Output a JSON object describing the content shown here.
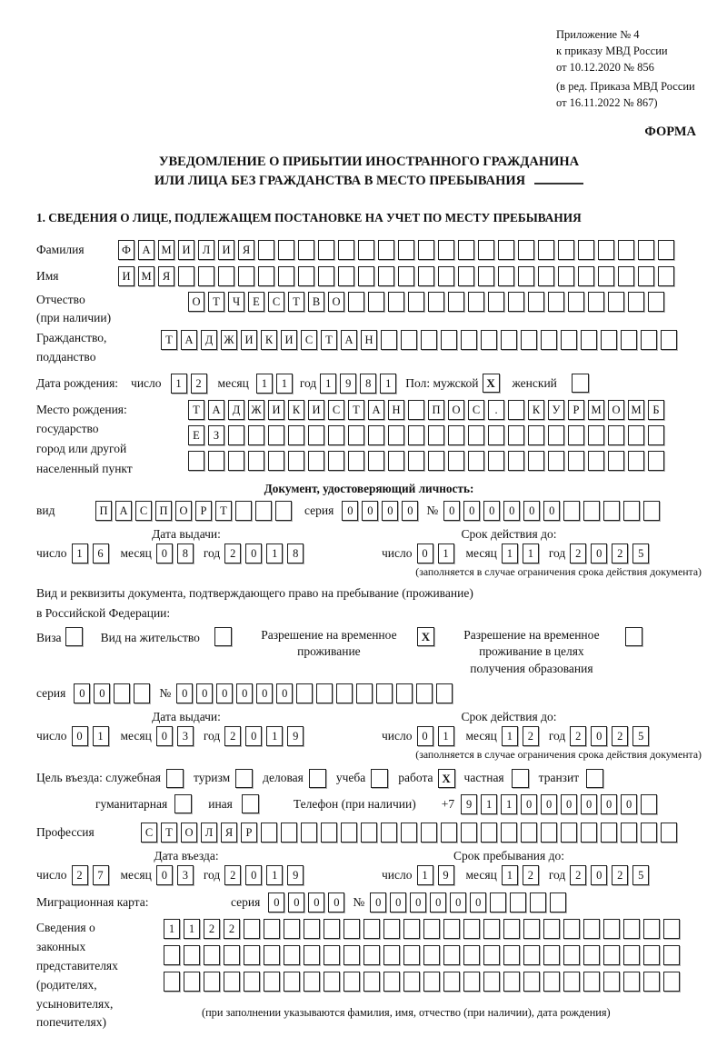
{
  "header": {
    "lines": [
      "Приложение № 4",
      "к приказу МВД России",
      "от 10.12.2020 № 856",
      "(в ред. Приказа МВД России",
      "от 16.11.2022 № 867)"
    ],
    "forma": "ФОРМА"
  },
  "title": {
    "line1": "УВЕДОМЛЕНИЕ О ПРИБЫТИИ ИНОСТРАННОГО ГРАЖДАНИНА",
    "line2": "ИЛИ ЛИЦА БЕЗ ГРАЖДАНСТВА В МЕСТО ПРЕБЫВАНИЯ"
  },
  "section1": {
    "heading": "1. СВЕДЕНИЯ О ЛИЦЕ, ПОДЛЕЖАЩЕМ ПОСТАНОВКЕ НА УЧЕТ ПО МЕСТУ ПРЕБЫВАНИЯ"
  },
  "labels": {
    "surname": "Фамилия",
    "name": "Имя",
    "patronymic": "Отчество",
    "patronymic_note": "(при наличии)",
    "citizenship1": "Гражданство,",
    "citizenship2": "подданство",
    "birthdate": "Дата рождения:",
    "day": "число",
    "month": "месяц",
    "year": "год",
    "sex_male": "Пол: мужской",
    "sex_female": "женский",
    "birthplace1": "Место рождения:",
    "birthplace2": "государство",
    "birthplace3": "город или другой",
    "birthplace4": "населенный пункт",
    "doc_heading": "Документ, удостоверяющий личность:",
    "vid": "вид",
    "seriya": "серия",
    "number_sign": "№",
    "issue_date": "Дата выдачи:",
    "valid_until": "Срок действия до:",
    "restriction_note": "(заполняется в случае ограничения срока действия документа)",
    "right_to_stay1": "Вид и реквизиты документа, подтверждающего право на пребывание (проживание)",
    "right_to_stay2": "в Российской Федерации:",
    "visa": "Виза",
    "residence_permit": "Вид на жительство",
    "temp_permit1": "Разрешение на временное",
    "temp_permit2": "проживание",
    "edu_permit1": "Разрешение на временное",
    "edu_permit2": "проживание в целях",
    "edu_permit3": "получения образования",
    "purpose": "Цель въезда: служебная",
    "tourism": "туризм",
    "business": "деловая",
    "study": "учеба",
    "work": "работа",
    "private": "частная",
    "transit": "транзит",
    "humanitarian": "гуманитарная",
    "other": "иная",
    "phone": "Телефон (при наличии)",
    "plus7": "+7",
    "profession": "Профессия",
    "entry_date": "Дата въезда:",
    "stay_until": "Срок пребывания до:",
    "migration_card": "Миграционная карта:",
    "reps1": "Сведения о",
    "reps2": "законных",
    "reps3": "представителях",
    "reps4": "(родителях,",
    "reps5": "усыновителях,",
    "reps6": "попечителях)",
    "rep_note": "(при заполнении указываются фамилия, имя, отчество (при наличии), дата рождения)"
  },
  "fields": {
    "surname": {
      "text": "ФАМИЛИЯ",
      "total": 28
    },
    "name": {
      "text": "ИМЯ",
      "total": 28
    },
    "patronymic": {
      "text": "ОТЧЕСТВО",
      "total": 24
    },
    "citizenship": {
      "text": "ТАДЖИКИСТАН",
      "total": 26
    },
    "birth_day": "12",
    "birth_month": "11",
    "birth_year": "1981",
    "birthplace_row1": {
      "text": "ТАДЖИКИСТАН ПОС. КУРМОМБ",
      "total": 24
    },
    "birthplace_row2": {
      "text": "ЕЗ",
      "total": 24
    },
    "birthplace_row3": {
      "text": "",
      "total": 24
    },
    "doc_type": {
      "text": "ПАСПОРТ",
      "total": 10
    },
    "doc_series": {
      "text": "0000",
      "total": 4
    },
    "doc_number": {
      "text": "000000",
      "total": 11
    },
    "doc_issue_day": "16",
    "doc_issue_month": "08",
    "doc_issue_year": "2018",
    "doc_valid_day": "01",
    "doc_valid_month": "11",
    "doc_valid_year": "2025",
    "permit_series": {
      "text": "00",
      "total": 4
    },
    "permit_number": {
      "text": "000000",
      "total": 14
    },
    "permit_issue_day": "01",
    "permit_issue_month": "03",
    "permit_issue_year": "2019",
    "permit_valid_day": "01",
    "permit_valid_month": "12",
    "permit_valid_year": "2025",
    "phone": {
      "text": "911000000",
      "total": 10
    },
    "profession": {
      "text": "СТОЛЯР",
      "total": 27
    },
    "entry_day": "27",
    "entry_month": "03",
    "entry_year": "2019",
    "stay_day": "19",
    "stay_month": "12",
    "stay_year": "2025",
    "mig_series": {
      "text": "0000",
      "total": 4
    },
    "mig_number": {
      "text": "000000",
      "total": 10
    },
    "reps_row1": {
      "text": "1122",
      "total": 26
    },
    "reps_row2": {
      "text": "",
      "total": 26
    },
    "reps_row3": {
      "text": "",
      "total": 26
    }
  },
  "checks": {
    "male": "X",
    "female": "",
    "visa": "",
    "residence_permit": "",
    "temp_permit": "X",
    "edu_permit": "",
    "official": "",
    "tourism": "",
    "business": "",
    "study": "",
    "work": "X",
    "private": "",
    "transit": "",
    "humanitarian": "",
    "other": ""
  }
}
